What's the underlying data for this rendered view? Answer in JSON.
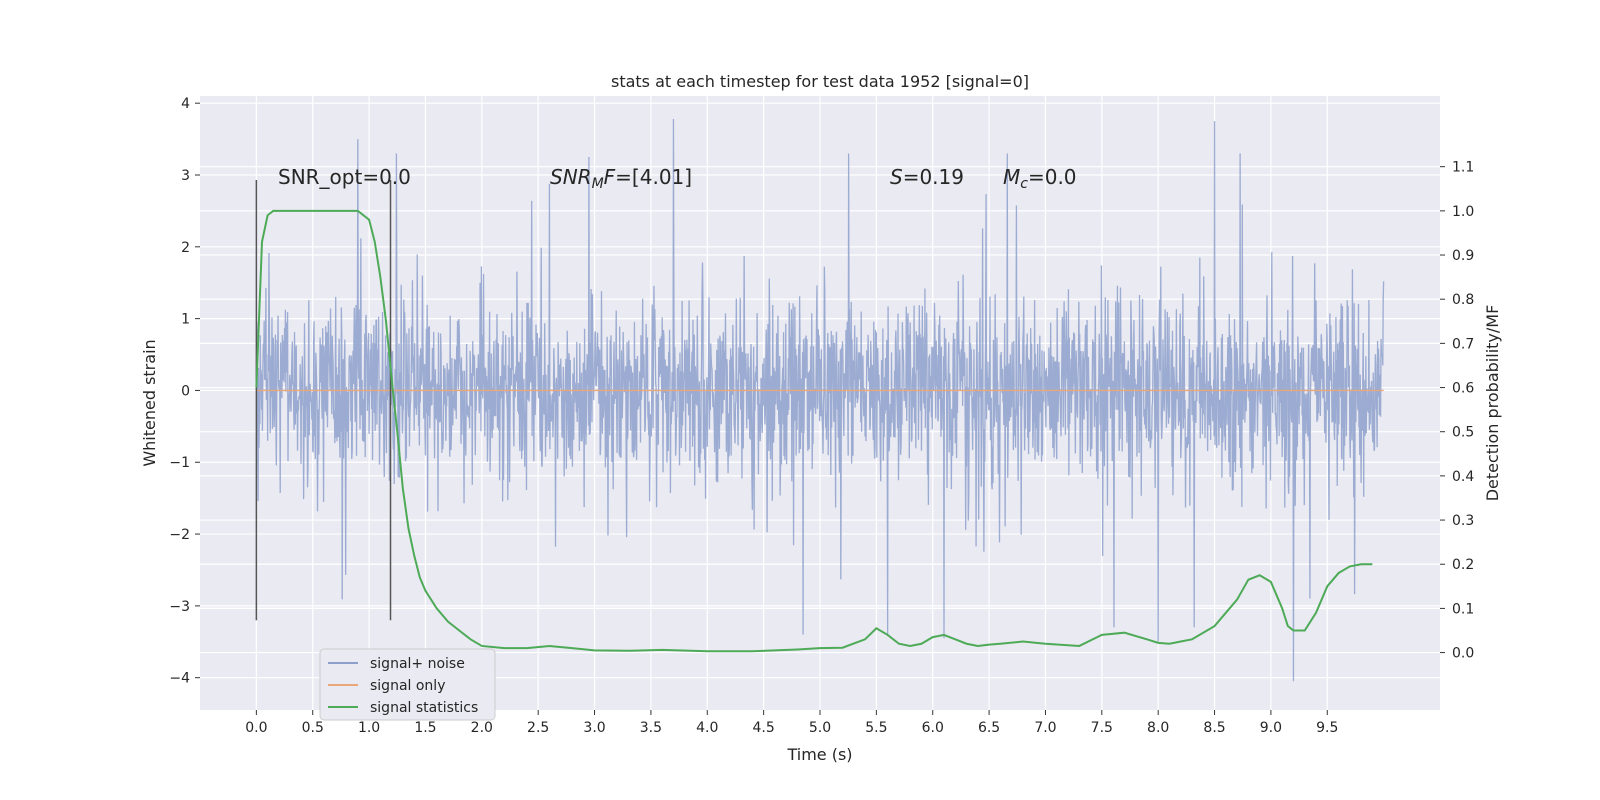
{
  "chart_data": {
    "type": "line",
    "title": "stats at each timestep for test data 1952 [signal=0]",
    "xlabel": "Time (s)",
    "ylabel": "Whitened strain",
    "y2label": "Detection probability/MF",
    "xlim": [
      -0.5,
      10.5
    ],
    "ylim": [
      -4.45,
      4.1
    ],
    "y2lim": [
      -0.13,
      1.26
    ],
    "x_ticks": [
      "0.0",
      "0.5",
      "1.0",
      "1.5",
      "2.0",
      "2.5",
      "3.0",
      "3.5",
      "4.0",
      "4.5",
      "5.0",
      "5.5",
      "6.0",
      "6.5",
      "7.0",
      "7.5",
      "8.0",
      "8.5",
      "9.0",
      "9.5"
    ],
    "y_ticks": [
      "4",
      "3",
      "2",
      "1",
      "0",
      "−1",
      "−2",
      "−3",
      "−4"
    ],
    "y2_ticks": [
      "1.1",
      "1.0",
      "0.9",
      "0.8",
      "0.7",
      "0.6",
      "0.5",
      "0.4",
      "0.3",
      "0.2",
      "0.1",
      "0.0"
    ],
    "grid": true,
    "legend_position": "lower-left",
    "annotations": {
      "snr_opt": "SNR_opt=0.0",
      "snr_mf_sym": "SNR",
      "snr_mf_sub": "M",
      "snr_mf_sym2": "F",
      "snr_mf_val": "=[4.01]",
      "s_sym": "S",
      "s_val": "=0.19",
      "mc_sym": "M",
      "mc_sub": "c",
      "mc_val": "=0.0"
    },
    "vlines": [
      0.0,
      1.19
    ],
    "vline_range": [
      -3.2,
      2.93
    ],
    "series": [
      {
        "name": "signal+ noise",
        "color": "#8da0cb",
        "x_range": [
          0.0,
          10.0
        ],
        "envelope_std": 0.62,
        "extremes": [
          [
            0.9,
            3.5
          ],
          [
            3.7,
            3.78
          ],
          [
            8.5,
            3.75
          ],
          [
            9.2,
            -4.05
          ],
          [
            4.85,
            -3.4
          ],
          [
            6.1,
            -3.45
          ],
          [
            5.6,
            -3.4
          ],
          [
            8.0,
            -3.5
          ],
          [
            2.95,
            3.25
          ]
        ]
      },
      {
        "name": "signal only",
        "color": "#e8a87c",
        "x": [
          0.0,
          10.0
        ],
        "values": [
          0.0,
          0.0
        ]
      },
      {
        "name": "signal statistics",
        "color": "#4daa57",
        "axis": "right",
        "x": [
          0.0,
          0.05,
          0.1,
          0.15,
          0.2,
          0.3,
          0.5,
          0.7,
          0.9,
          1.0,
          1.05,
          1.1,
          1.15,
          1.2,
          1.25,
          1.3,
          1.35,
          1.4,
          1.45,
          1.5,
          1.6,
          1.7,
          1.8,
          1.9,
          2.0,
          2.2,
          2.4,
          2.6,
          2.8,
          3.0,
          3.3,
          3.6,
          4.0,
          4.4,
          4.8,
          5.0,
          5.2,
          5.4,
          5.5,
          5.6,
          5.7,
          5.8,
          5.9,
          6.0,
          6.1,
          6.2,
          6.3,
          6.4,
          6.5,
          6.6,
          6.8,
          7.0,
          7.3,
          7.5,
          7.7,
          7.9,
          8.0,
          8.1,
          8.2,
          8.3,
          8.5,
          8.7,
          8.8,
          8.9,
          9.0,
          9.1,
          9.15,
          9.2,
          9.3,
          9.4,
          9.5,
          9.6,
          9.7,
          9.8,
          9.9
        ],
        "values": [
          0.6,
          0.93,
          0.99,
          1.0,
          1.0,
          1.0,
          1.0,
          1.0,
          1.0,
          0.98,
          0.93,
          0.85,
          0.75,
          0.62,
          0.5,
          0.37,
          0.28,
          0.22,
          0.17,
          0.14,
          0.1,
          0.07,
          0.05,
          0.03,
          0.015,
          0.01,
          0.01,
          0.015,
          0.01,
          0.005,
          0.004,
          0.006,
          0.003,
          0.003,
          0.007,
          0.01,
          0.011,
          0.03,
          0.055,
          0.04,
          0.02,
          0.015,
          0.02,
          0.035,
          0.04,
          0.03,
          0.02,
          0.015,
          0.018,
          0.02,
          0.025,
          0.02,
          0.015,
          0.04,
          0.045,
          0.03,
          0.022,
          0.02,
          0.025,
          0.03,
          0.06,
          0.12,
          0.165,
          0.175,
          0.16,
          0.1,
          0.06,
          0.05,
          0.05,
          0.09,
          0.15,
          0.18,
          0.195,
          0.2,
          0.2
        ]
      }
    ]
  }
}
